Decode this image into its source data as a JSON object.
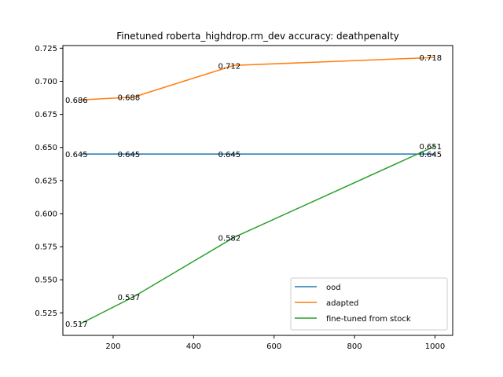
{
  "chart_data": {
    "type": "line",
    "title": "Finetuned roberta_highdrop.rm_dev accuracy: deathpenalty",
    "xlabel": "",
    "ylabel": "",
    "xlim": [
      75,
      1044
    ],
    "ylim": [
      0.508,
      0.727
    ],
    "xticks": [
      200,
      400,
      600,
      800,
      1000
    ],
    "yticks": [
      0.525,
      0.55,
      0.575,
      0.6,
      0.625,
      0.65,
      0.675,
      0.7,
      0.725
    ],
    "grid": false,
    "legend_position": "lower-right",
    "series": [
      {
        "name": "ood",
        "color": "#1f77b4",
        "x": [
          120,
          250,
          500,
          1000
        ],
        "y": [
          0.645,
          0.645,
          0.645,
          0.645
        ],
        "labels": [
          "0.645",
          "0.645",
          "0.645",
          "0.645"
        ]
      },
      {
        "name": "adapted",
        "color": "#ff7f0e",
        "x": [
          120,
          250,
          500,
          1000
        ],
        "y": [
          0.686,
          0.688,
          0.712,
          0.718
        ],
        "labels": [
          "0.686",
          "0.688",
          "0.712",
          "0.718"
        ]
      },
      {
        "name": "fine-tuned from stock",
        "color": "#2ca02c",
        "x": [
          120,
          250,
          500,
          1000
        ],
        "y": [
          0.517,
          0.537,
          0.582,
          0.651
        ],
        "labels": [
          "0.517",
          "0.537",
          "0.582",
          "0.651"
        ]
      }
    ]
  }
}
